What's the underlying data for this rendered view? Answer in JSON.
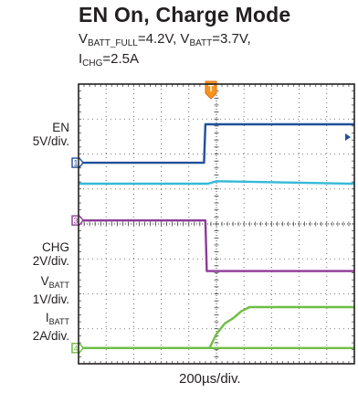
{
  "chart_data": {
    "type": "line",
    "title": "EN On, Charge Mode",
    "conditions": {
      "line1_prefix": "V",
      "line1_sub1": "BATT_FULL",
      "line1_mid": "=4.2V, V",
      "line1_sub2": "BATT",
      "line1_end": "=3.7V,",
      "line2_prefix": "I",
      "line2_sub": "CHG",
      "line2_end": "=2.5A"
    },
    "xlabel": "200µs/div.",
    "x_range": [
      0,
      10
    ],
    "y_range_div": [
      0,
      8
    ],
    "grid": true,
    "trigger_marker": "T",
    "channel_labels": [
      {
        "name_main": "EN",
        "name_sub": "",
        "scale": "5V/div."
      },
      {
        "name_main": "CHG",
        "name_sub": "",
        "scale": "2V/div."
      },
      {
        "name_main": "V",
        "name_sub": "BATT",
        "scale": "1V/div."
      },
      {
        "name_main": "I",
        "name_sub": "BATT",
        "scale": "2A/div."
      }
    ],
    "series": [
      {
        "color": "#1f4f9a",
        "marker": "1",
        "x": [
          0,
          4.55,
          4.6,
          10
        ],
        "y": [
          5.75,
          5.75,
          6.85,
          6.85
        ]
      },
      {
        "color": "#35b9d8",
        "marker": "",
        "x": [
          0,
          4.7,
          5.0,
          10
        ],
        "y": [
          5.15,
          5.15,
          5.22,
          5.15
        ]
      },
      {
        "color": "#8e3a97",
        "marker": "3",
        "x": [
          0,
          4.6,
          4.65,
          10
        ],
        "y": [
          4.1,
          4.1,
          2.65,
          2.65
        ]
      },
      {
        "color": "#6fbe44",
        "marker": "2",
        "x": [
          0,
          4.75,
          5.0,
          5.3,
          5.6,
          5.9,
          6.2,
          10
        ],
        "y": [
          0.45,
          0.45,
          0.85,
          1.15,
          1.3,
          1.5,
          1.62,
          1.62
        ]
      },
      {
        "color": "#6fbe44",
        "marker": "4",
        "x": [
          0,
          4.75,
          10
        ],
        "y": [
          0.45,
          0.45,
          0.45
        ]
      }
    ]
  }
}
